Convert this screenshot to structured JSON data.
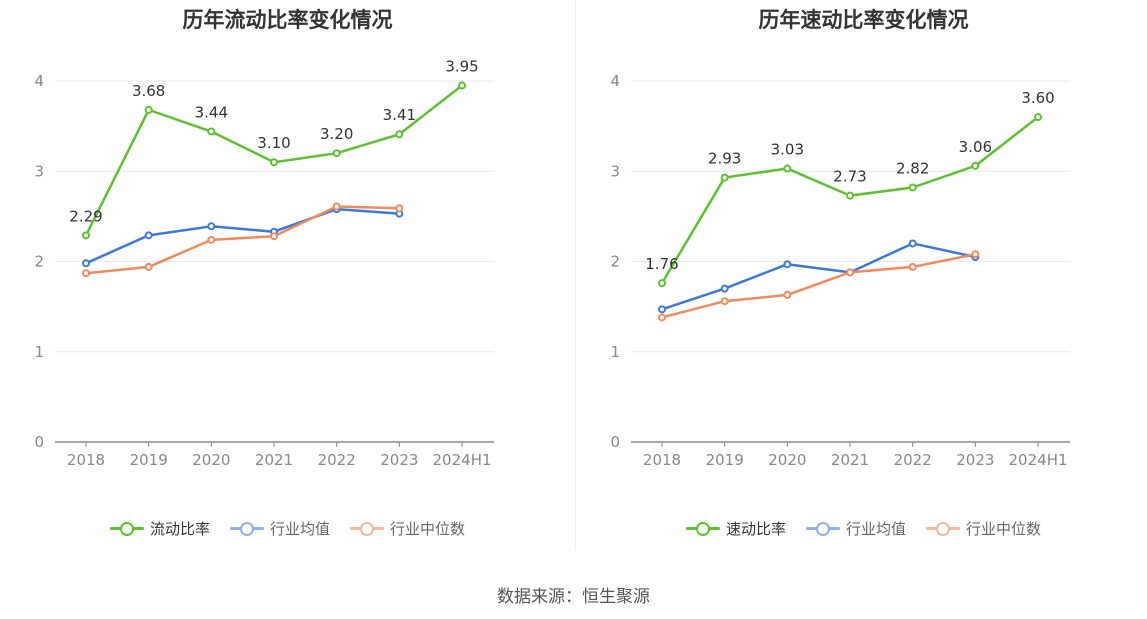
{
  "source": "数据来源：恒生聚源",
  "colors": {
    "main": "#5cc22e",
    "avg": "#3c78d8",
    "median": "#f08a5d",
    "axis": "#888888",
    "grid": "#e8e8e8",
    "label": "#333333"
  },
  "chart_data": [
    {
      "type": "line",
      "title": "历年流动比率变化情况",
      "categories": [
        "2018",
        "2019",
        "2020",
        "2021",
        "2022",
        "2023",
        "2024H1"
      ],
      "ylim": [
        0,
        4
      ],
      "yticks": [
        "0",
        "1",
        "2",
        "3",
        "4"
      ],
      "grid": true,
      "legend_position": "bottom",
      "series": [
        {
          "name": "流动比率",
          "values": [
            2.29,
            3.68,
            3.44,
            3.1,
            3.2,
            3.41,
            3.95
          ],
          "labels": [
            "2.29",
            "3.68",
            "3.44",
            "3.10",
            "3.20",
            "3.41",
            "3.95"
          ]
        },
        {
          "name": "行业均值",
          "values": [
            1.98,
            2.29,
            2.39,
            2.33,
            2.58,
            2.53,
            null
          ]
        },
        {
          "name": "行业中位数",
          "values": [
            1.87,
            1.94,
            2.24,
            2.28,
            2.61,
            2.59,
            null
          ]
        }
      ]
    },
    {
      "type": "line",
      "title": "历年速动比率变化情况",
      "categories": [
        "2018",
        "2019",
        "2020",
        "2021",
        "2022",
        "2023",
        "2024H1"
      ],
      "ylim": [
        0,
        4
      ],
      "yticks": [
        "0",
        "1",
        "2",
        "3",
        "4"
      ],
      "grid": true,
      "legend_position": "bottom",
      "series": [
        {
          "name": "速动比率",
          "values": [
            1.76,
            2.93,
            3.03,
            2.73,
            2.82,
            3.06,
            3.6
          ],
          "labels": [
            "1.76",
            "2.93",
            "3.03",
            "2.73",
            "2.82",
            "3.06",
            "3.60"
          ]
        },
        {
          "name": "行业均值",
          "values": [
            1.47,
            1.7,
            1.97,
            1.88,
            2.2,
            2.05,
            null
          ]
        },
        {
          "name": "行业中位数",
          "values": [
            1.38,
            1.56,
            1.63,
            1.88,
            1.94,
            2.08,
            null
          ]
        }
      ]
    }
  ]
}
